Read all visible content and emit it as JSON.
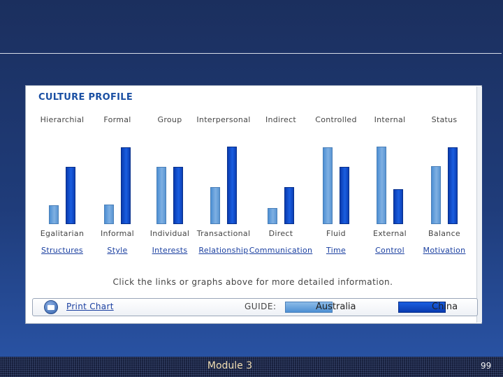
{
  "chart_data": {
    "type": "bar",
    "title": "CULTURE PROFILE",
    "dimensions": [
      {
        "top": "Hierarchial",
        "bottom": "Egalitarian",
        "link": "Structures"
      },
      {
        "top": "Formal",
        "bottom": "Informal",
        "link": "Style"
      },
      {
        "top": "Group",
        "bottom": "Individual",
        "link": "Interests"
      },
      {
        "top": "Interpersonal",
        "bottom": "Transactional",
        "link": "Relationship"
      },
      {
        "top": "Indirect",
        "bottom": "Direct",
        "link": "Communication"
      },
      {
        "top": "Controlled",
        "bottom": "Fluid",
        "link": "Time"
      },
      {
        "top": "Internal",
        "bottom": "External",
        "link": "Control"
      },
      {
        "top": "Status",
        "bottom": "Balance",
        "link": "Motivation"
      }
    ],
    "series": [
      {
        "name": "Australia",
        "color": "#6aa3dc",
        "values": [
          0.24,
          0.25,
          0.74,
          0.48,
          0.21,
          0.99,
          1.0,
          0.75
        ]
      },
      {
        "name": "China",
        "color": "#0c47c8",
        "values": [
          0.74,
          0.99,
          0.74,
          1.0,
          0.48,
          0.74,
          0.45,
          0.99
        ]
      },
      {
        "note_placeholder": ""
      }
    ],
    "ylim": [
      0,
      1
    ]
  },
  "info_text": "Click the links or graphs above for more detailed information.",
  "print_label": "Print Chart",
  "guide_label": "GUIDE:",
  "legend": {
    "australia": "Australia",
    "china": "China"
  },
  "footer": {
    "module": "Module 3",
    "page": "99"
  },
  "colors": {
    "accent": "#1a4fa3",
    "link": "#1a3fa0",
    "australia": "#6aa3dc",
    "china": "#0c47c8"
  }
}
